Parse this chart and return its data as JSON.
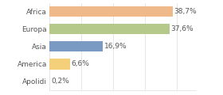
{
  "categories": [
    "Africa",
    "Europa",
    "Asia",
    "America",
    "Apolidi"
  ],
  "values": [
    38.7,
    37.6,
    16.9,
    6.6,
    0.2
  ],
  "labels": [
    "38,7%",
    "37,6%",
    "16,9%",
    "6,6%",
    "0,2%"
  ],
  "bar_colors": [
    "#f0b98a",
    "#b5c98a",
    "#7a9ac4",
    "#f5d07a",
    "#e8e8e8"
  ],
  "background_color": "#ffffff",
  "xlim": [
    0,
    46
  ],
  "label_fontsize": 6.5,
  "tick_fontsize": 6.5,
  "bar_height": 0.6,
  "grid_color": "#dddddd",
  "text_color": "#555555",
  "grid_xticks": [
    0,
    10,
    20,
    30,
    40
  ]
}
